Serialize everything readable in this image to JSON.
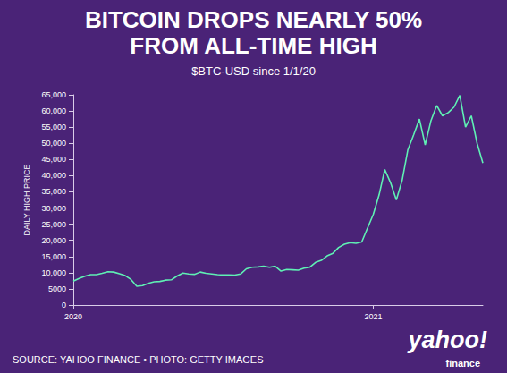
{
  "chart_data": {
    "type": "line",
    "title": "BITCOIN DROPS NEARLY 50%\nFROM ALL-TIME HIGH",
    "subtitle": "$BTC-USD since 1/1/20",
    "y_label": "DAILY HIGH PRICE",
    "source": "SOURCE: YAHOO FINANCE • PHOTO: GETTY IMAGES",
    "logo": "yahoo!",
    "logo_sub": "finance",
    "color": "#5ff0b4",
    "grid": false,
    "categories": [
      "2020",
      null,
      null,
      null,
      null,
      null,
      null,
      null,
      null,
      null,
      null,
      null,
      null,
      null,
      null,
      null,
      null,
      null,
      null,
      null,
      null,
      null,
      null,
      null,
      null,
      null,
      null,
      null,
      null,
      null,
      null,
      null,
      null,
      null,
      null,
      null,
      null,
      null,
      null,
      null,
      null,
      null,
      null,
      null,
      null,
      null,
      null,
      null,
      null,
      null,
      null,
      null,
      "2021",
      null,
      null,
      null,
      null,
      null,
      null,
      null,
      null,
      null,
      null,
      null,
      null,
      null,
      null,
      null,
      null,
      null,
      null,
      null
    ],
    "values": [
      7400,
      8200,
      8900,
      9400,
      9400,
      9800,
      10300,
      10200,
      9700,
      9100,
      7900,
      5800,
      6000,
      6700,
      7200,
      7300,
      7700,
      7800,
      9000,
      9900,
      9600,
      9500,
      10200,
      9800,
      9600,
      9400,
      9300,
      9300,
      9250,
      9600,
      11200,
      11700,
      11800,
      12000,
      11700,
      12000,
      10500,
      11000,
      10900,
      10800,
      11400,
      11700,
      13200,
      13800,
      15200,
      16000,
      17800,
      18800,
      19300,
      19100,
      19500,
      23800,
      28000,
      34000,
      41900,
      37800,
      32500,
      38500,
      48000,
      52600,
      57500,
      49500,
      57000,
      61700,
      58500,
      59500,
      61200,
      64800,
      55000,
      58500,
      50000,
      43900
    ],
    "ylim": [
      0,
      65000
    ],
    "yticks": [
      0,
      5000,
      {
        "value": 10000,
        "label": "10,000"
      },
      {
        "value": 15000,
        "label": "15,000"
      },
      {
        "value": 20000,
        "label": "20,000"
      },
      {
        "value": 25000,
        "label": "25,000"
      },
      {
        "value": 30000,
        "label": "30,000"
      },
      {
        "value": 35000,
        "label": "35,000"
      },
      {
        "value": 40000,
        "label": "40,000"
      },
      {
        "value": 45000,
        "label": "45,000"
      },
      {
        "value": 50000,
        "label": "50,000"
      },
      {
        "value": 55000,
        "label": "55,000"
      },
      {
        "value": 60000,
        "label": "60,000"
      },
      {
        "value": 65000,
        "label": "65,000"
      }
    ]
  }
}
